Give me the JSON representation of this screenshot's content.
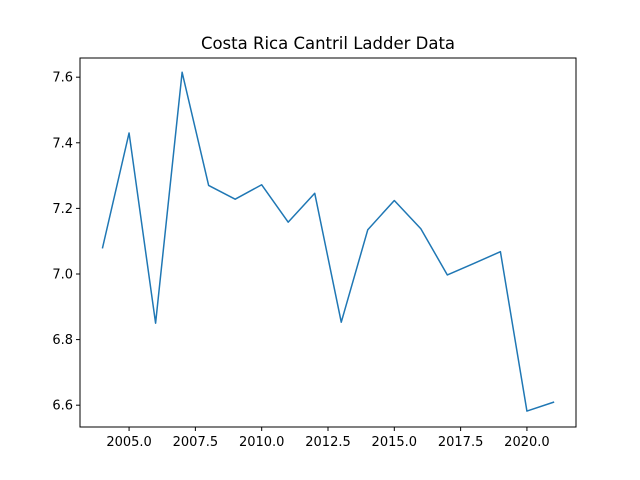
{
  "chart_data": {
    "type": "line",
    "title": "Costa Rica Cantril Ladder Data",
    "xlabel": "",
    "ylabel": "",
    "xlim": [
      2003.15,
      2021.85
    ],
    "ylim": [
      6.5335,
      7.6585
    ],
    "x_ticks": [
      2005.0,
      2007.5,
      2010.0,
      2012.5,
      2015.0,
      2017.5,
      2020.0
    ],
    "x_tick_labels": [
      "2005.0",
      "2007.5",
      "2010.0",
      "2012.5",
      "2015.0",
      "2017.5",
      "2020.0"
    ],
    "y_ticks": [
      6.6,
      6.8,
      7.0,
      7.2,
      7.4,
      7.6
    ],
    "y_tick_labels": [
      "6.6",
      "6.8",
      "7.0",
      "7.2",
      "7.4",
      "7.6"
    ],
    "grid": false,
    "series": [
      {
        "color": "#1f77b4",
        "x": [
          2004,
          2005,
          2006,
          2007,
          2008,
          2009,
          2010,
          2011,
          2012,
          2013,
          2014,
          2015,
          2016,
          2017,
          2018,
          2019,
          2020,
          2021
        ],
        "y": [
          7.08,
          7.43,
          6.85,
          7.615,
          7.27,
          7.228,
          7.272,
          7.158,
          7.246,
          6.853,
          7.135,
          7.224,
          7.138,
          6.997,
          7.032,
          7.068,
          6.582,
          6.609
        ]
      }
    ]
  }
}
